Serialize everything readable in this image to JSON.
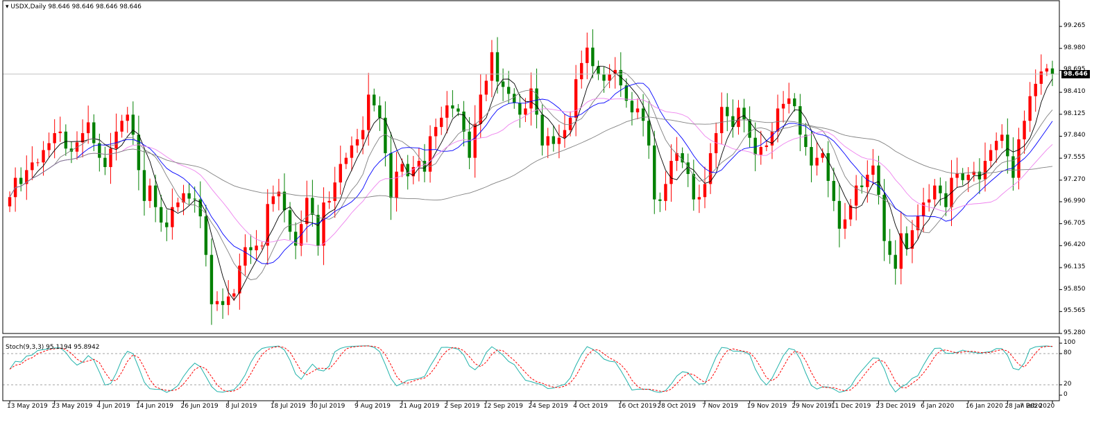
{
  "header": {
    "symbol_info": "USDX,Daily",
    "ohlc": "98.646 98.646 98.646 98.646"
  },
  "stoch_header": "Stoch(9,3,3) 95.1194 95.8942",
  "current_price": "98.646",
  "colors": {
    "bull": "#ff0000",
    "bear": "#008000",
    "ma_black": "#000000",
    "ma_gray": "#808080",
    "ma_blue": "#0000ff",
    "ma_violet": "#ee82ee",
    "stoch_main": "#20b2aa",
    "stoch_signal": "#ff0000"
  },
  "chart_data": [
    {
      "type": "candlestick",
      "title": "USDX,Daily",
      "ylim": [
        95.28,
        99.5
      ],
      "y_ticks": [
        "99.265",
        "98.980",
        "98.695",
        "98.410",
        "98.125",
        "97.840",
        "97.555",
        "97.270",
        "96.990",
        "96.705",
        "96.420",
        "96.135",
        "95.850",
        "95.565",
        "95.280"
      ],
      "x_tick_labels": [
        "13 May 2019",
        "23 May 2019",
        "4 Jun 2019",
        "14 Jun 2019",
        "26 Jun 2019",
        "8 Jul 2019",
        "18 Jul 2019",
        "30 Jul 2019",
        "9 Aug 2019",
        "21 Aug 2019",
        "2 Sep 2019",
        "12 Sep 2019",
        "24 Sep 2019",
        "4 Oct 2019",
        "16 Oct 2019",
        "28 Oct 2019",
        "7 Nov 2019",
        "19 Nov 2019",
        "29 Nov 2019",
        "11 Dec 2019",
        "23 Dec 2019",
        "6 Jan 2020",
        "16 Jan 2020",
        "28 Jan 2020",
        "7 Feb 2020"
      ],
      "candles_close": [
        97.05,
        97.3,
        97.22,
        97.4,
        97.5,
        97.5,
        97.66,
        97.75,
        97.88,
        97.9,
        97.68,
        97.64,
        97.76,
        97.88,
        98.02,
        97.75,
        97.56,
        97.44,
        97.68,
        97.9,
        98.04,
        98.12,
        97.86,
        97.4,
        97.0,
        97.2,
        96.92,
        96.72,
        96.66,
        96.92,
        96.98,
        97.1,
        97.03,
        97.02,
        96.8,
        96.3,
        95.66,
        95.7,
        95.65,
        95.76,
        95.8,
        96.16,
        96.4,
        96.36,
        96.42,
        96.42,
        96.96,
        97.06,
        97.12,
        96.88,
        96.6,
        96.42,
        96.7,
        97.04,
        96.82,
        96.42,
        96.98,
        97.0,
        97.24,
        97.48,
        97.56,
        97.72,
        97.8,
        97.92,
        98.38,
        98.24,
        98.08,
        97.62,
        97.04,
        97.38,
        97.48,
        97.32,
        97.44,
        97.52,
        97.38,
        97.84,
        97.96,
        98.08,
        98.24,
        98.2,
        98.16,
        97.9,
        97.56,
        98.0,
        98.38,
        98.56,
        98.93,
        98.55,
        98.48,
        98.39,
        98.27,
        98.12,
        98.2,
        98.46,
        98.12,
        97.72,
        97.84,
        97.74,
        97.82,
        97.92,
        98.08,
        98.58,
        98.79,
        98.99,
        98.75,
        98.64,
        98.56,
        98.64,
        98.7,
        98.5,
        98.3,
        98.15,
        98.2,
        98.04,
        97.72,
        97.02,
        97.0,
        97.22,
        97.52,
        97.62,
        97.5,
        97.35,
        97.02,
        97.05,
        97.22,
        97.62,
        97.88,
        98.22,
        98.1,
        97.96,
        98.21,
        98.06,
        97.82,
        97.6,
        97.7,
        97.72,
        97.9,
        98.2,
        98.26,
        98.33,
        98.23,
        97.86,
        97.7,
        97.46,
        97.56,
        97.62,
        97.26,
        97.0,
        96.64,
        96.76,
        96.94,
        97.2,
        97.18,
        97.34,
        97.46,
        97.08,
        96.48,
        96.3,
        96.12,
        96.58,
        96.38,
        96.62,
        96.8,
        96.98,
        97.02,
        97.2,
        97.1,
        96.92,
        97.3,
        97.36,
        97.27,
        97.34,
        97.38,
        97.28,
        97.52,
        97.66,
        97.78,
        97.86,
        97.58,
        97.3,
        97.8,
        98.04,
        98.36,
        98.52,
        98.68,
        98.72,
        98.646
      ],
      "series": [
        {
          "name": "",
          "type": "ma",
          "color": "#000000"
        },
        {
          "name": "",
          "type": "ma",
          "color": "#808080"
        },
        {
          "name": "",
          "type": "ma",
          "color": "#0000ff"
        },
        {
          "name": "",
          "type": "ma",
          "color": "#ee82ee"
        }
      ]
    },
    {
      "type": "line",
      "title": "Stoch(9,3,3) 95.1194 95.8942",
      "ylim": [
        0,
        100
      ],
      "y_ticks": [
        "100",
        "80",
        "20",
        "0"
      ],
      "levels": [
        80,
        20
      ]
    }
  ]
}
